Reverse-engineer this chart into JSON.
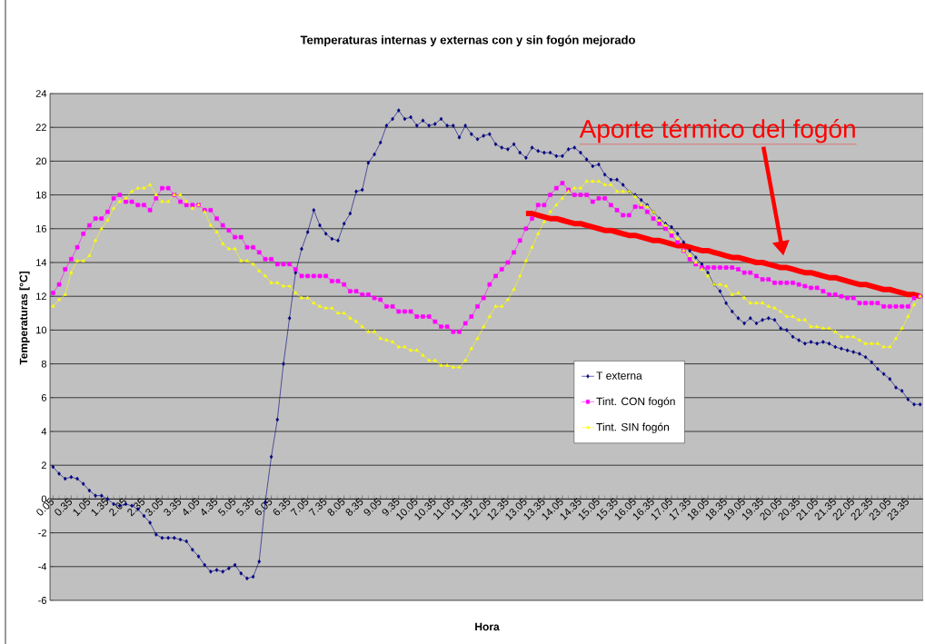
{
  "chart_data": {
    "type": "line",
    "title": "Temperaturas internas y externas con y sin fogón mejorado",
    "xlabel": "Hora",
    "ylabel": "Temperaturas [°C]",
    "ylim": [
      -6,
      24
    ],
    "yticks": [
      -6,
      -4,
      -2,
      0,
      2,
      4,
      6,
      8,
      10,
      12,
      14,
      16,
      18,
      20,
      22,
      24
    ],
    "categories": [
      "0.05",
      null,
      null,
      "0.35",
      null,
      null,
      "1.05",
      null,
      null,
      "1.35",
      null,
      null,
      "2.05",
      null,
      null,
      "2.35",
      null,
      null,
      "3.05",
      null,
      null,
      "3.35",
      null,
      null,
      "4.05",
      null,
      null,
      "4.35",
      null,
      null,
      "5.05",
      null,
      null,
      "5.35",
      null,
      null,
      "6.05",
      null,
      null,
      "6.35",
      null,
      null,
      "7.05",
      null,
      null,
      "7.35",
      null,
      null,
      "8.05",
      null,
      null,
      "8.35",
      null,
      null,
      "9.05",
      null,
      null,
      "9.35",
      null,
      null,
      "10.05",
      null,
      null,
      "10.35",
      null,
      null,
      "11.05",
      null,
      null,
      "11.35",
      null,
      null,
      "12.05",
      null,
      null,
      "12.35",
      null,
      null,
      "13.05",
      null,
      null,
      "13.35",
      null,
      null,
      "14.05",
      null,
      null,
      "14.35",
      null,
      null,
      "15.05",
      null,
      null,
      "15.35",
      null,
      null,
      "16.05",
      null,
      null,
      "16.35",
      null,
      null,
      "17.05",
      null,
      null,
      "17.35",
      null,
      null,
      "18.05",
      null,
      null,
      "18.35",
      null,
      null,
      "19.05",
      null,
      null,
      "19.35",
      null,
      null,
      "20.05",
      null,
      null,
      "20.35",
      null,
      null,
      "21.05",
      null,
      null,
      "21.35",
      null,
      null,
      "22.05",
      null,
      null,
      "22.35",
      null,
      null,
      "23.05",
      null,
      null,
      "23.35",
      null,
      null
    ],
    "grid": "y",
    "legend": "right",
    "annotations": [
      "Aporte térmico del fogón"
    ],
    "series": [
      {
        "name": "T externa",
        "color": "#000080",
        "marker": "diamond",
        "values": [
          1.9,
          1.5,
          1.2,
          1.3,
          1.2,
          0.9,
          0.5,
          0.2,
          0.2,
          0.0,
          -0.3,
          -0.4,
          -0.3,
          -0.4,
          -0.6,
          -1.0,
          -1.4,
          -2.1,
          -2.3,
          -2.3,
          -2.3,
          -2.4,
          -2.5,
          -3.0,
          -3.4,
          -3.9,
          -4.3,
          -4.2,
          -4.3,
          -4.1,
          -3.9,
          -4.4,
          -4.7,
          -4.6,
          -3.7,
          -0.2,
          2.5,
          4.7,
          8.0,
          10.7,
          13.4,
          14.8,
          15.8,
          17.1,
          16.2,
          15.7,
          15.4,
          15.3,
          16.3,
          16.9,
          18.2,
          18.3,
          19.9,
          20.4,
          21.1,
          22.1,
          22.5,
          23.0,
          22.5,
          22.6,
          22.1,
          22.4,
          22.1,
          22.2,
          22.5,
          22.1,
          22.1,
          21.4,
          22.1,
          21.6,
          21.3,
          21.5,
          21.6,
          21.0,
          20.8,
          20.7,
          21.0,
          20.5,
          20.2,
          20.8,
          20.6,
          20.5,
          20.5,
          20.3,
          20.3,
          20.7,
          20.8,
          20.5,
          20.1,
          19.7,
          19.8,
          19.2,
          18.9,
          18.9,
          18.6,
          18.2,
          18.0,
          17.7,
          17.4,
          17.0,
          16.6,
          16.3,
          16.1,
          15.7,
          15.2,
          14.7,
          14.3,
          13.9,
          13.4,
          12.7,
          12.3,
          11.6,
          11.1,
          10.7,
          10.4,
          10.7,
          10.4,
          10.6,
          10.7,
          10.6,
          10.1,
          10.0,
          9.6,
          9.4,
          9.2,
          9.3,
          9.2,
          9.3,
          9.2,
          9.0,
          8.9,
          8.8,
          8.7,
          8.6,
          8.4,
          8.1,
          7.7,
          7.4,
          7.1,
          6.6,
          6.4,
          5.9,
          5.6,
          5.6
        ]
      },
      {
        "name": "Tint. CON fogón",
        "color": "#ff00ff",
        "marker": "square",
        "values": [
          12.2,
          12.7,
          13.6,
          14.2,
          14.9,
          15.7,
          16.2,
          16.6,
          16.6,
          17.0,
          17.8,
          18.0,
          17.6,
          17.6,
          17.4,
          17.4,
          17.1,
          17.8,
          18.4,
          18.4,
          18.0,
          17.6,
          17.4,
          17.4,
          17.4,
          17.1,
          17.1,
          16.6,
          16.2,
          15.9,
          15.5,
          15.5,
          14.9,
          14.9,
          14.6,
          14.2,
          14.2,
          13.9,
          13.9,
          13.9,
          13.6,
          13.2,
          13.2,
          13.2,
          13.2,
          13.2,
          12.9,
          12.9,
          12.7,
          12.3,
          12.3,
          12.1,
          12.1,
          11.9,
          11.8,
          11.4,
          11.4,
          11.1,
          11.1,
          11.1,
          10.8,
          10.8,
          10.8,
          10.5,
          10.2,
          10.2,
          9.9,
          9.9,
          10.4,
          10.8,
          11.4,
          11.9,
          12.7,
          13.2,
          13.6,
          14.0,
          14.6,
          15.3,
          16.0,
          16.6,
          17.4,
          17.4,
          18.0,
          18.4,
          18.7,
          18.3,
          18.0,
          18.0,
          18.0,
          17.6,
          17.8,
          17.8,
          17.4,
          17.1,
          16.8,
          16.8,
          17.3,
          17.3,
          17.0,
          16.6,
          16.3,
          16.0,
          15.6,
          15.2,
          14.7,
          14.2,
          13.9,
          13.7,
          13.7,
          13.7,
          13.7,
          13.7,
          13.7,
          13.6,
          13.4,
          13.4,
          13.2,
          13.0,
          13.0,
          12.8,
          12.8,
          12.8,
          12.8,
          12.7,
          12.6,
          12.5,
          12.5,
          12.3,
          12.1,
          12.1,
          12.0,
          11.9,
          11.9,
          11.6,
          11.6,
          11.6,
          11.6,
          11.4,
          11.4,
          11.4,
          11.4,
          11.4,
          11.9,
          12.0
        ]
      },
      {
        "name": "Tint. SIN fogón",
        "color": "#ffff00",
        "marker": "triangle",
        "values": [
          11.4,
          11.8,
          12.1,
          13.4,
          14.1,
          14.1,
          14.4,
          15.3,
          16.0,
          16.5,
          17.2,
          17.6,
          17.8,
          18.2,
          18.4,
          18.4,
          18.6,
          18.0,
          17.6,
          17.6,
          18.0,
          18.0,
          17.6,
          17.2,
          17.4,
          17.0,
          16.2,
          15.8,
          15.1,
          14.8,
          14.8,
          14.1,
          14.1,
          13.9,
          13.5,
          13.2,
          12.8,
          12.8,
          12.6,
          12.6,
          12.2,
          11.9,
          11.9,
          11.6,
          11.4,
          11.3,
          11.3,
          11.0,
          11.0,
          10.7,
          10.5,
          10.2,
          9.9,
          9.9,
          9.5,
          9.4,
          9.3,
          9.0,
          9.0,
          8.8,
          8.8,
          8.5,
          8.2,
          8.2,
          7.9,
          7.9,
          7.8,
          7.8,
          8.2,
          8.9,
          9.5,
          10.2,
          10.8,
          11.4,
          11.4,
          11.8,
          12.4,
          13.2,
          14.1,
          14.9,
          15.7,
          16.4,
          17.0,
          17.4,
          17.8,
          18.2,
          18.4,
          18.4,
          18.8,
          18.8,
          18.8,
          18.6,
          18.6,
          18.2,
          18.2,
          18.2,
          17.9,
          17.4,
          17.3,
          17.0,
          16.5,
          16.2,
          15.8,
          15.4,
          14.7,
          14.4,
          14.0,
          13.6,
          13.2,
          12.7,
          12.7,
          12.6,
          12.1,
          12.2,
          11.9,
          11.6,
          11.6,
          11.6,
          11.4,
          11.3,
          11.1,
          10.8,
          10.8,
          10.6,
          10.6,
          10.2,
          10.2,
          10.1,
          10.1,
          9.9,
          9.6,
          9.6,
          9.6,
          9.4,
          9.2,
          9.2,
          9.2,
          9.0,
          9.0,
          9.5,
          10.1,
          10.8,
          11.5,
          12.0
        ]
      },
      {
        "type": "line",
        "color": "#ff0000",
        "marker": "none",
        "values": [
          null,
          null,
          null,
          null,
          null,
          null,
          null,
          null,
          null,
          null,
          null,
          null,
          null,
          null,
          null,
          null,
          null,
          null,
          null,
          null,
          null,
          null,
          null,
          null,
          null,
          null,
          null,
          null,
          null,
          null,
          null,
          null,
          null,
          null,
          null,
          null,
          null,
          null,
          null,
          null,
          null,
          null,
          null,
          null,
          null,
          null,
          null,
          null,
          null,
          null,
          null,
          null,
          null,
          null,
          null,
          null,
          null,
          null,
          null,
          null,
          null,
          null,
          null,
          null,
          null,
          null,
          null,
          null,
          null,
          null,
          null,
          null,
          null,
          null,
          null,
          null,
          null,
          null,
          16.9,
          16.9,
          16.8,
          16.7,
          16.6,
          16.6,
          16.5,
          16.4,
          16.3,
          16.3,
          16.2,
          16.1,
          16.0,
          15.9,
          15.9,
          15.8,
          15.7,
          15.6,
          15.6,
          15.5,
          15.4,
          15.3,
          15.3,
          15.2,
          15.1,
          15.0,
          15.0,
          14.9,
          14.8,
          14.7,
          14.7,
          14.6,
          14.5,
          14.4,
          14.3,
          14.3,
          14.2,
          14.1,
          14.0,
          14.0,
          13.9,
          13.8,
          13.7,
          13.7,
          13.6,
          13.5,
          13.4,
          13.4,
          13.3,
          13.2,
          13.1,
          13.1,
          13.0,
          12.9,
          12.8,
          12.7,
          12.7,
          12.6,
          12.5,
          12.4,
          12.4,
          12.3,
          12.2,
          12.1,
          12.1,
          12.0
        ]
      }
    ]
  }
}
